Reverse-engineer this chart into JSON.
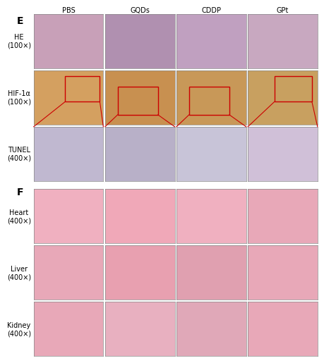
{
  "figure_label_E": "E",
  "figure_label_F": "F",
  "col_headers": [
    "PBS",
    "GQDs",
    "CDDP",
    "GPt"
  ],
  "row_headers_E": [
    "HE\n(100×)",
    "HIF-1α\n(100×)",
    "TUNEL\n(400×)"
  ],
  "row_headers_F": [
    "Heart\n(400×)",
    "Liver\n(400×)",
    "Kidney\n(400×)"
  ],
  "bg_color": "#ffffff",
  "panel_border_color": "#888888",
  "red_box_color": "#cc0000",
  "section_divider_color": "#cccccc",
  "he_colors": [
    [
      "#c8a0b8",
      "#b090b0",
      "#c0a0c0",
      "#c8a8c0"
    ],
    [
      "#d4a060",
      "#c89050",
      "#c89858",
      "#c8a060"
    ],
    [
      "#c0b8d0",
      "#b8b0c8",
      "#c8c4d8",
      "#d0c0d8"
    ]
  ],
  "f_heart_colors": [
    "#f0b0c0",
    "#f0a8b8",
    "#f0b0c0",
    "#e8a8b8"
  ],
  "f_liver_colors": [
    "#e8a8b8",
    "#e8a0b0",
    "#e0a0b0",
    "#e8a8b8"
  ],
  "f_kidney_colors": [
    "#e8a8b8",
    "#e8b0c0",
    "#e0a8b8",
    "#e8a8b8"
  ],
  "label_fontsize": 7,
  "header_fontsize": 7,
  "panel_label_fontsize": 10
}
